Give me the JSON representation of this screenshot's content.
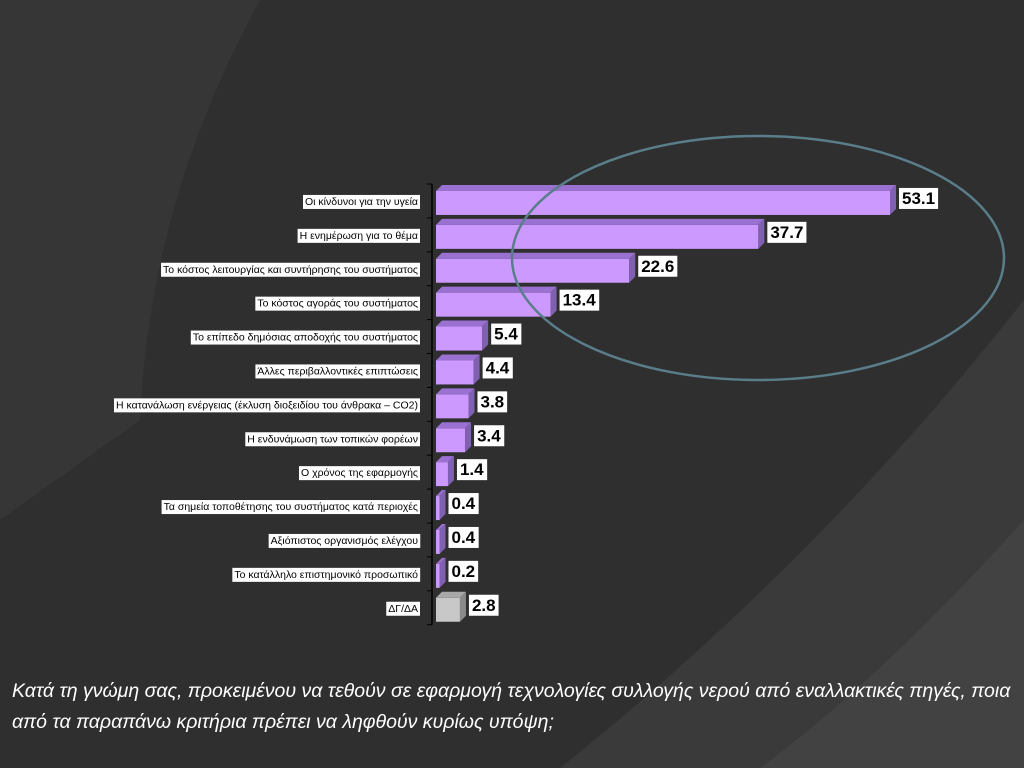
{
  "chart_data": {
    "type": "bar",
    "orientation": "horizontal",
    "categories": [
      "Οι κίνδυνοι για την υγεία",
      "Η ενημέρωση για το θέμα",
      "Το κόστος λειτουργίας και συντήρησης του συστήματος",
      "Το κόστος αγοράς του συστήματος",
      "Το επίπεδο δημόσιας αποδοχής του συστήματος",
      "Άλλες περιβαλλοντικές επιπτώσεις",
      "Η κατανάλωση ενέργειας (έκλυση διοξειδίου του άνθρακα – CO2)",
      "Η ενδυνάμωση των τοπικών φορέων",
      "Ο χρόνος της εφαρμογής",
      "Τα σημεία τοποθέτησης του συστήματος κατά περιοχές",
      "Αξιόπιστος οργανισμός  ελέγχου",
      "Το κατάλληλο επιστημονικό προσωπικό",
      "ΔΓ/ΔΑ"
    ],
    "values": [
      53.1,
      37.7,
      22.6,
      13.4,
      5.4,
      4.4,
      3.8,
      3.4,
      1.4,
      0.4,
      0.4,
      0.2,
      2.8
    ],
    "value_labels": [
      "53.1",
      "37.7",
      "22.6",
      "13.4",
      "5.4",
      "4.4",
      "3.8",
      "3.4",
      "1.4",
      "0.4",
      "0.4",
      "0.2",
      "2.8"
    ],
    "xlim": [
      0,
      55
    ],
    "bar_color": "#cc99ff",
    "bar_side_color": "#8060b0",
    "bar_top_color": "#9a70d0",
    "dk_color": "#c8c8c8",
    "dk_side_color": "#8a8a8a",
    "highlight_ellipse_color": "#5a7d8a",
    "grid": false
  },
  "caption": "Κατά τη γνώμη σας, προκειμένου να τεθούν σε εφαρμογή τεχνολογίες συλλογής νερού από εναλλακτικές πηγές, ποια από τα παραπάνω κριτήρια πρέπει να ληφθούν κυρίως υπόψη;",
  "colors": {
    "background": "#2f2f2f",
    "background_accent": "#3d3d3d",
    "caption_text": "#ffffff",
    "label_box": "#ffffff"
  }
}
